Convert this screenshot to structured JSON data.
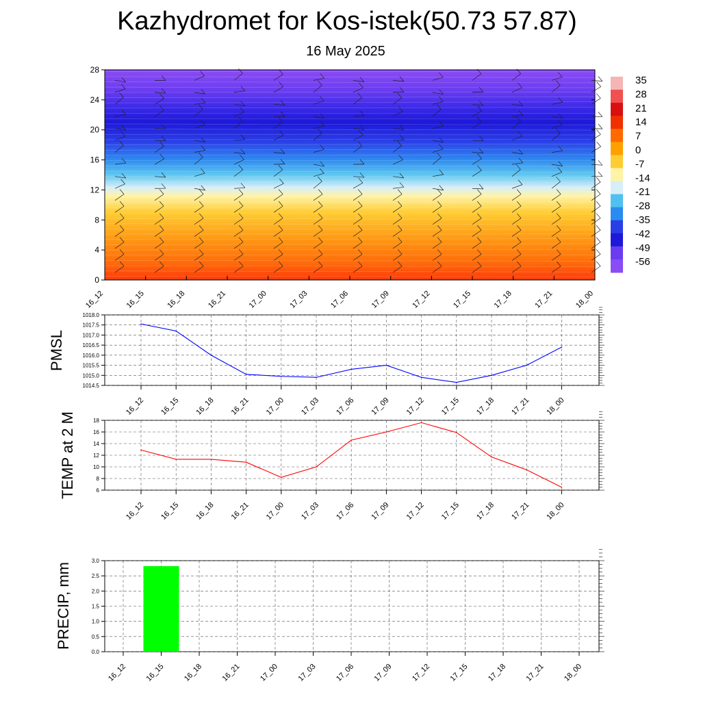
{
  "header": {
    "title": "Kazhydromet for Kos-istek(50.73 57.87)",
    "date": "16 May 2025"
  },
  "time_labels": [
    "16_12",
    "16_15",
    "16_18",
    "16_21",
    "17_00",
    "17_03",
    "17_06",
    "17_09",
    "17_12",
    "17_15",
    "17_18",
    "17_21",
    "18_00"
  ],
  "colors": {
    "pmsl_line": "#0000ff",
    "temp_line": "#ff0000",
    "precip_bar": "#00ff00"
  },
  "chart_data": [
    {
      "type": "heatmap",
      "id": "profile",
      "ylim": [
        0,
        28
      ],
      "y_ticks": [
        0,
        4,
        8,
        12,
        16,
        20,
        24,
        28
      ],
      "x": [
        "16_12",
        "16_15",
        "16_18",
        "16_21",
        "17_00",
        "17_03",
        "17_06",
        "17_09",
        "17_12",
        "17_15",
        "17_18",
        "17_21",
        "18_00"
      ],
      "note_values": "temperature by level (estimated)",
      "levels": [
        0,
        4,
        8,
        12,
        16,
        20,
        24,
        28
      ],
      "values": [
        [
          10,
          9,
          9,
          8,
          7,
          9,
          13,
          15,
          17,
          15,
          11,
          9,
          7
        ],
        [
          7,
          6,
          6,
          5,
          5,
          6,
          8,
          10,
          11,
          10,
          8,
          6,
          5
        ],
        [
          2,
          2,
          2,
          1,
          1,
          1,
          2,
          3,
          3,
          3,
          2,
          1,
          1
        ],
        [
          -10,
          -10,
          -11,
          -11,
          -11,
          -12,
          -12,
          -12,
          -13,
          -13,
          -13,
          -13,
          -14
        ],
        [
          -28,
          -28,
          -28,
          -28,
          -28,
          -28,
          -27,
          -27,
          -26,
          -25,
          -25,
          -24,
          -24
        ],
        [
          -52,
          -52,
          -52,
          -51,
          -51,
          -51,
          -50,
          -50,
          -50,
          -50,
          -50,
          -50,
          -50
        ],
        [
          -57,
          -57,
          -57,
          -57,
          -57,
          -57,
          -57,
          -57,
          -57,
          -57,
          -57,
          -57,
          -57
        ],
        [
          -50,
          -50,
          -50,
          -50,
          -50,
          -50,
          -50,
          -50,
          -50,
          -50,
          -50,
          -50,
          -50
        ]
      ],
      "colorbar_labels": [
        "35",
        "28",
        "21",
        "14",
        "7",
        "0",
        "-7",
        "-14",
        "-21",
        "-28",
        "-35",
        "-42",
        "-49",
        "-56"
      ]
    },
    {
      "type": "line",
      "id": "pmsl",
      "ylabel": "PMSL",
      "categories": [
        "16_12",
        "16_15",
        "16_18",
        "16_21",
        "17_00",
        "17_03",
        "17_06",
        "17_09",
        "17_12",
        "17_15",
        "17_18",
        "17_21",
        "18_00"
      ],
      "values": [
        1017.55,
        1017.2,
        1016.0,
        1015.05,
        1014.95,
        1014.9,
        1015.3,
        1015.5,
        1014.9,
        1014.65,
        1015.0,
        1015.5,
        1016.4
      ],
      "ylim": [
        1014.5,
        1018.0
      ],
      "y_ticks": [
        "1014.5",
        "1015.0",
        "1015.5",
        "1016.0",
        "1016.5",
        "1017.0",
        "1017.5",
        "1018.0"
      ]
    },
    {
      "type": "line",
      "id": "temp",
      "ylabel": "TEMP at 2 M",
      "categories": [
        "16_12",
        "16_15",
        "16_18",
        "16_21",
        "17_00",
        "17_03",
        "17_06",
        "17_09",
        "17_12",
        "17_15",
        "17_18",
        "17_21",
        "18_00"
      ],
      "values": [
        12.9,
        11.3,
        11.3,
        10.8,
        8.2,
        10.0,
        14.6,
        16.0,
        17.6,
        15.9,
        11.7,
        9.5,
        6.5
      ],
      "ylim": [
        6,
        18
      ],
      "y_ticks": [
        "6",
        "8",
        "10",
        "12",
        "14",
        "16",
        "18"
      ]
    },
    {
      "type": "bar",
      "id": "precip",
      "ylabel": "PRECIP, mm",
      "categories": [
        "16_12",
        "16_15",
        "16_18",
        "16_21",
        "17_00",
        "17_03",
        "17_06",
        "17_09",
        "17_12",
        "17_15",
        "17_18",
        "17_21",
        "18_00"
      ],
      "values": [
        0,
        2.82,
        0,
        0,
        0,
        0,
        0,
        0,
        0,
        0,
        0,
        0,
        0
      ],
      "ylim": [
        0,
        3.0
      ],
      "y_ticks": [
        "0.0",
        "0.5",
        "1.0",
        "1.5",
        "2.0",
        "2.5",
        "3.0"
      ]
    }
  ]
}
